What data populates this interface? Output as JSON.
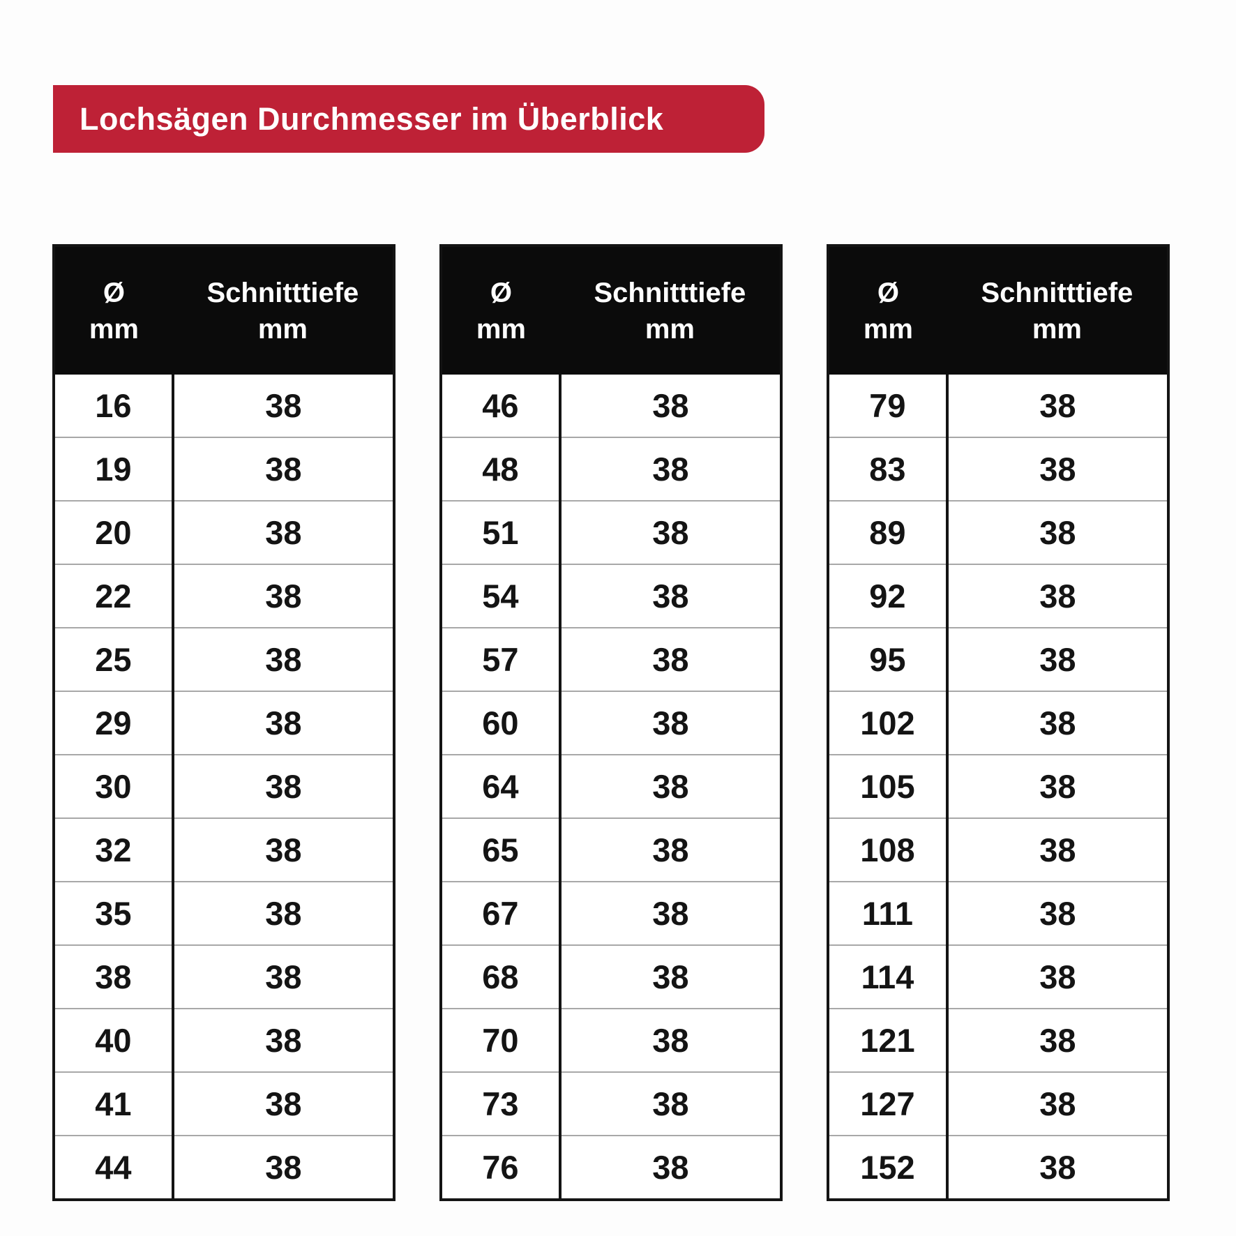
{
  "badge": {
    "label": "Lochsägen Durchmesser im Überblick",
    "bg_color": "#BE2136",
    "text_color": "#ffffff"
  },
  "table_header": {
    "col1_line1": "Ø",
    "col1_line2": "mm",
    "col2_line1": "Schnitttiefe",
    "col2_line2": "mm"
  },
  "colors": {
    "header_bg": "#0b0b0b",
    "border_dark": "#141414",
    "row_divider": "#a8a8a8",
    "cell_text": "#141414",
    "page_bg": "#fdfdfd"
  },
  "chart_data": {
    "type": "table",
    "title": "Lochsägen Durchmesser im Überblick",
    "columns": [
      "Ø mm",
      "Schnitttiefe mm"
    ],
    "tables": [
      {
        "rows": [
          [
            16,
            38
          ],
          [
            19,
            38
          ],
          [
            20,
            38
          ],
          [
            22,
            38
          ],
          [
            25,
            38
          ],
          [
            29,
            38
          ],
          [
            30,
            38
          ],
          [
            32,
            38
          ],
          [
            35,
            38
          ],
          [
            38,
            38
          ],
          [
            40,
            38
          ],
          [
            41,
            38
          ],
          [
            44,
            38
          ]
        ]
      },
      {
        "rows": [
          [
            46,
            38
          ],
          [
            48,
            38
          ],
          [
            51,
            38
          ],
          [
            54,
            38
          ],
          [
            57,
            38
          ],
          [
            60,
            38
          ],
          [
            64,
            38
          ],
          [
            65,
            38
          ],
          [
            67,
            38
          ],
          [
            68,
            38
          ],
          [
            70,
            38
          ],
          [
            73,
            38
          ],
          [
            76,
            38
          ]
        ]
      },
      {
        "rows": [
          [
            79,
            38
          ],
          [
            83,
            38
          ],
          [
            89,
            38
          ],
          [
            92,
            38
          ],
          [
            95,
            38
          ],
          [
            102,
            38
          ],
          [
            105,
            38
          ],
          [
            108,
            38
          ],
          [
            111,
            38
          ],
          [
            114,
            38
          ],
          [
            121,
            38
          ],
          [
            127,
            38
          ],
          [
            152,
            38
          ]
        ]
      }
    ]
  }
}
